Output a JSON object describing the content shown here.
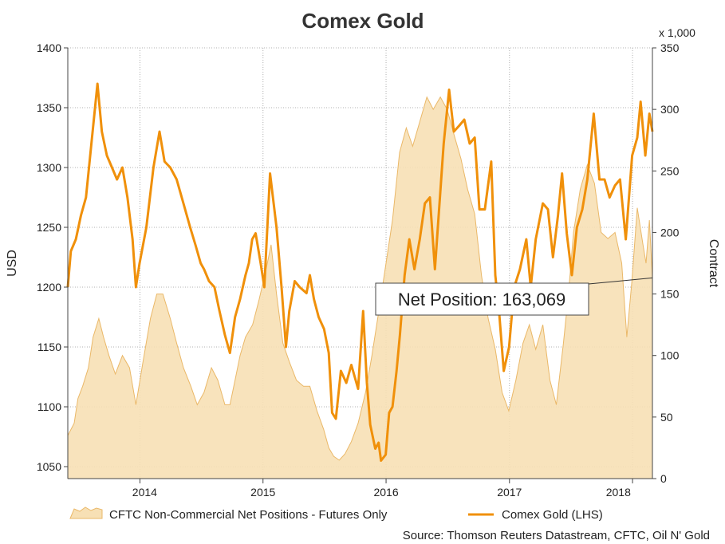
{
  "chart_data": {
    "type": "line",
    "title": "Comex Gold",
    "y_left_label": "USD",
    "y_right_label": "Contract",
    "y_right_unit": "x 1,000",
    "ylim_left": [
      1040,
      1400
    ],
    "ylim_right": [
      0,
      350
    ],
    "yticks_left": [
      1050,
      1100,
      1150,
      1200,
      1250,
      1300,
      1350,
      1400
    ],
    "yticks_right": [
      0,
      50,
      100,
      150,
      200,
      250,
      300,
      350
    ],
    "xlim": [
      "2013-06-01",
      "2018-03-01"
    ],
    "x_tick_labels": [
      "2014",
      "2015",
      "2016",
      "2017",
      "2018"
    ],
    "x_tick_positions": [
      "2014-01-01",
      "2015-01-01",
      "2016-01-01",
      "2017-01-01",
      "2018-01-01"
    ],
    "x_label_positions": [
      "2014-01-15",
      "2015-01-01",
      "2016-01-01",
      "2017-01-01",
      "2017-11-20"
    ],
    "grid": true,
    "annotation": "Net Position: 163,069",
    "annotation_date": "2018-03-01",
    "annotation_value": 163.069,
    "source": "Source: Thomson Reuters Datastream, CFTC, Oil N' Gold",
    "legend_position": "bottom",
    "colors": {
      "area_fill": "#f7e0b5",
      "area_edge": "#eab868",
      "line": "#f0900a",
      "grid": "#b0b0b0"
    },
    "series": [
      {
        "name": "CFTC Non-Commercial Net Positions - Futures Only",
        "axis": "right",
        "style": "area",
        "data": [
          [
            "2013-06-01",
            35
          ],
          [
            "2013-06-20",
            45
          ],
          [
            "2013-07-01",
            65
          ],
          [
            "2013-07-15",
            75
          ],
          [
            "2013-08-01",
            90
          ],
          [
            "2013-08-15",
            115
          ],
          [
            "2013-09-01",
            130
          ],
          [
            "2013-09-15",
            115
          ],
          [
            "2013-10-01",
            100
          ],
          [
            "2013-10-20",
            85
          ],
          [
            "2013-11-10",
            100
          ],
          [
            "2013-12-01",
            90
          ],
          [
            "2013-12-20",
            60
          ],
          [
            "2014-01-10",
            95
          ],
          [
            "2014-02-01",
            130
          ],
          [
            "2014-02-20",
            150
          ],
          [
            "2014-03-10",
            150
          ],
          [
            "2014-04-01",
            130
          ],
          [
            "2014-04-20",
            110
          ],
          [
            "2014-05-10",
            90
          ],
          [
            "2014-06-01",
            75
          ],
          [
            "2014-06-20",
            60
          ],
          [
            "2014-07-10",
            70
          ],
          [
            "2014-08-01",
            90
          ],
          [
            "2014-08-20",
            80
          ],
          [
            "2014-09-10",
            60
          ],
          [
            "2014-09-25",
            60
          ],
          [
            "2014-10-10",
            80
          ],
          [
            "2014-10-25",
            100
          ],
          [
            "2014-11-10",
            115
          ],
          [
            "2014-12-01",
            125
          ],
          [
            "2014-12-20",
            145
          ],
          [
            "2015-01-10",
            170
          ],
          [
            "2015-01-25",
            190
          ],
          [
            "2015-02-10",
            150
          ],
          [
            "2015-03-01",
            110
          ],
          [
            "2015-03-20",
            95
          ],
          [
            "2015-04-10",
            80
          ],
          [
            "2015-05-01",
            75
          ],
          [
            "2015-05-20",
            75
          ],
          [
            "2015-06-10",
            55
          ],
          [
            "2015-06-30",
            40
          ],
          [
            "2015-07-15",
            25
          ],
          [
            "2015-07-30",
            18
          ],
          [
            "2015-08-15",
            15
          ],
          [
            "2015-09-01",
            20
          ],
          [
            "2015-09-20",
            30
          ],
          [
            "2015-10-10",
            45
          ],
          [
            "2015-11-01",
            70
          ],
          [
            "2015-11-20",
            100
          ],
          [
            "2015-12-10",
            135
          ],
          [
            "2016-01-01",
            175
          ],
          [
            "2016-01-20",
            210
          ],
          [
            "2016-02-10",
            265
          ],
          [
            "2016-03-01",
            285
          ],
          [
            "2016-03-20",
            270
          ],
          [
            "2016-04-10",
            290
          ],
          [
            "2016-05-01",
            310
          ],
          [
            "2016-05-20",
            300
          ],
          [
            "2016-06-10",
            310
          ],
          [
            "2016-06-30",
            300
          ],
          [
            "2016-07-20",
            280
          ],
          [
            "2016-08-10",
            260
          ],
          [
            "2016-08-30",
            235
          ],
          [
            "2016-09-20",
            215
          ],
          [
            "2016-10-10",
            165
          ],
          [
            "2016-10-30",
            130
          ],
          [
            "2016-11-20",
            105
          ],
          [
            "2016-12-10",
            70
          ],
          [
            "2016-12-30",
            55
          ],
          [
            "2017-01-20",
            80
          ],
          [
            "2017-02-10",
            110
          ],
          [
            "2017-03-01",
            125
          ],
          [
            "2017-03-20",
            105
          ],
          [
            "2017-04-10",
            125
          ],
          [
            "2017-05-01",
            80
          ],
          [
            "2017-05-20",
            60
          ],
          [
            "2017-06-10",
            110
          ],
          [
            "2017-06-25",
            150
          ],
          [
            "2017-07-10",
            200
          ],
          [
            "2017-07-30",
            235
          ],
          [
            "2017-08-20",
            255
          ],
          [
            "2017-09-10",
            240
          ],
          [
            "2017-09-30",
            200
          ],
          [
            "2017-10-20",
            195
          ],
          [
            "2017-11-10",
            200
          ],
          [
            "2017-11-30",
            175
          ],
          [
            "2017-12-15",
            115
          ],
          [
            "2017-12-30",
            160
          ],
          [
            "2018-01-15",
            220
          ],
          [
            "2018-02-01",
            190
          ],
          [
            "2018-02-10",
            175
          ],
          [
            "2018-02-20",
            210
          ],
          [
            "2018-03-01",
            163
          ]
        ]
      },
      {
        "name": "Comex Gold (LHS)",
        "axis": "left",
        "style": "line",
        "data": [
          [
            "2013-06-01",
            1200
          ],
          [
            "2013-06-10",
            1230
          ],
          [
            "2013-06-25",
            1240
          ],
          [
            "2013-07-10",
            1260
          ],
          [
            "2013-07-25",
            1275
          ],
          [
            "2013-08-10",
            1320
          ],
          [
            "2013-08-28",
            1370
          ],
          [
            "2013-09-10",
            1330
          ],
          [
            "2013-09-25",
            1310
          ],
          [
            "2013-10-10",
            1300
          ],
          [
            "2013-10-25",
            1290
          ],
          [
            "2013-11-10",
            1300
          ],
          [
            "2013-11-25",
            1275
          ],
          [
            "2013-12-10",
            1240
          ],
          [
            "2013-12-20",
            1200
          ],
          [
            "2013-12-31",
            1220
          ],
          [
            "2014-01-20",
            1250
          ],
          [
            "2014-02-10",
            1300
          ],
          [
            "2014-02-28",
            1330
          ],
          [
            "2014-03-15",
            1305
          ],
          [
            "2014-04-01",
            1300
          ],
          [
            "2014-04-20",
            1290
          ],
          [
            "2014-05-10",
            1270
          ],
          [
            "2014-05-30",
            1250
          ],
          [
            "2014-06-15",
            1235
          ],
          [
            "2014-06-30",
            1220
          ],
          [
            "2014-07-10",
            1215
          ],
          [
            "2014-07-25",
            1205
          ],
          [
            "2014-08-10",
            1200
          ],
          [
            "2014-08-25",
            1180
          ],
          [
            "2014-09-10",
            1160
          ],
          [
            "2014-09-25",
            1145
          ],
          [
            "2014-10-10",
            1175
          ],
          [
            "2014-10-25",
            1190
          ],
          [
            "2014-11-10",
            1210
          ],
          [
            "2014-11-20",
            1220
          ],
          [
            "2014-11-30",
            1240
          ],
          [
            "2014-12-10",
            1245
          ],
          [
            "2014-12-25",
            1220
          ],
          [
            "2015-01-05",
            1200
          ],
          [
            "2015-01-22",
            1295
          ],
          [
            "2015-02-10",
            1250
          ],
          [
            "2015-02-25",
            1200
          ],
          [
            "2015-03-10",
            1150
          ],
          [
            "2015-03-20",
            1180
          ],
          [
            "2015-04-05",
            1205
          ],
          [
            "2015-04-20",
            1200
          ],
          [
            "2015-05-10",
            1195
          ],
          [
            "2015-05-20",
            1210
          ],
          [
            "2015-06-01",
            1190
          ],
          [
            "2015-06-15",
            1175
          ],
          [
            "2015-07-01",
            1165
          ],
          [
            "2015-07-15",
            1145
          ],
          [
            "2015-07-25",
            1095
          ],
          [
            "2015-08-05",
            1090
          ],
          [
            "2015-08-20",
            1130
          ],
          [
            "2015-09-05",
            1120
          ],
          [
            "2015-09-20",
            1135
          ],
          [
            "2015-10-10",
            1115
          ],
          [
            "2015-10-25",
            1180
          ],
          [
            "2015-11-05",
            1120
          ],
          [
            "2015-11-15",
            1085
          ],
          [
            "2015-11-30",
            1065
          ],
          [
            "2015-12-10",
            1070
          ],
          [
            "2015-12-17",
            1055
          ],
          [
            "2015-12-31",
            1060
          ],
          [
            "2016-01-10",
            1095
          ],
          [
            "2016-01-20",
            1100
          ],
          [
            "2016-02-01",
            1130
          ],
          [
            "2016-02-11",
            1160
          ],
          [
            "2016-02-25",
            1210
          ],
          [
            "2016-03-10",
            1240
          ],
          [
            "2016-03-25",
            1215
          ],
          [
            "2016-04-10",
            1240
          ],
          [
            "2016-04-25",
            1270
          ],
          [
            "2016-05-10",
            1275
          ],
          [
            "2016-05-25",
            1215
          ],
          [
            "2016-06-10",
            1280
          ],
          [
            "2016-06-20",
            1320
          ],
          [
            "2016-07-06",
            1365
          ],
          [
            "2016-07-20",
            1330
          ],
          [
            "2016-08-05",
            1335
          ],
          [
            "2016-08-20",
            1340
          ],
          [
            "2016-09-05",
            1320
          ],
          [
            "2016-09-20",
            1325
          ],
          [
            "2016-10-04",
            1265
          ],
          [
            "2016-10-20",
            1265
          ],
          [
            "2016-11-08",
            1305
          ],
          [
            "2016-11-20",
            1210
          ],
          [
            "2016-12-01",
            1180
          ],
          [
            "2016-12-15",
            1130
          ],
          [
            "2016-12-31",
            1150
          ],
          [
            "2017-01-15",
            1200
          ],
          [
            "2017-02-01",
            1215
          ],
          [
            "2017-02-20",
            1240
          ],
          [
            "2017-03-05",
            1200
          ],
          [
            "2017-03-20",
            1240
          ],
          [
            "2017-04-10",
            1270
          ],
          [
            "2017-04-25",
            1265
          ],
          [
            "2017-05-10",
            1225
          ],
          [
            "2017-05-25",
            1260
          ],
          [
            "2017-06-06",
            1295
          ],
          [
            "2017-06-20",
            1245
          ],
          [
            "2017-07-05",
            1210
          ],
          [
            "2017-07-20",
            1250
          ],
          [
            "2017-08-05",
            1265
          ],
          [
            "2017-08-20",
            1290
          ],
          [
            "2017-09-08",
            1345
          ],
          [
            "2017-09-25",
            1290
          ],
          [
            "2017-10-10",
            1290
          ],
          [
            "2017-10-25",
            1275
          ],
          [
            "2017-11-10",
            1285
          ],
          [
            "2017-11-25",
            1290
          ],
          [
            "2017-12-12",
            1240
          ],
          [
            "2017-12-31",
            1310
          ],
          [
            "2018-01-15",
            1325
          ],
          [
            "2018-01-25",
            1355
          ],
          [
            "2018-02-08",
            1310
          ],
          [
            "2018-02-20",
            1345
          ],
          [
            "2018-03-01",
            1330
          ]
        ]
      }
    ]
  }
}
